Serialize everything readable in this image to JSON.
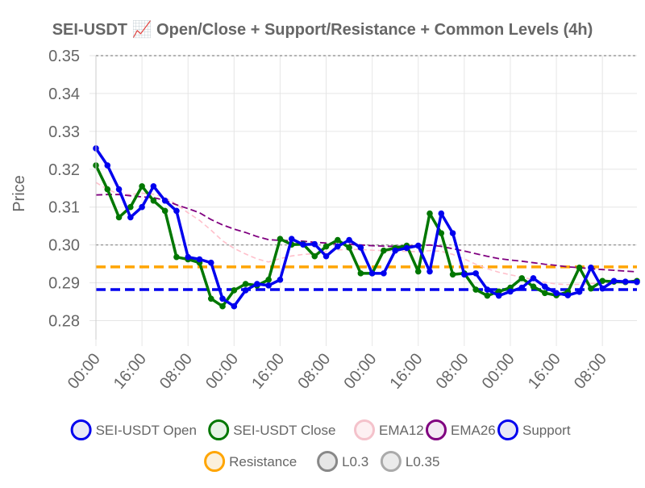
{
  "chart_data": {
    "type": "line",
    "title": "SEI-USDT 📈 Open/Close + Support/Resistance + Common Levels (4h)",
    "ylabel": "Price",
    "xlabel": "",
    "ylim": [
      0.275,
      0.35
    ],
    "y_ticks": [
      "0.28",
      "0.29",
      "0.30",
      "0.31",
      "0.32",
      "0.33",
      "0.34",
      "0.35"
    ],
    "x_tick_labels": [
      "00:00",
      "16:00",
      "08:00",
      "00:00",
      "16:00",
      "08:00",
      "00:00",
      "16:00",
      "08:00",
      "00:00",
      "16:00",
      "08:00"
    ],
    "grid": true,
    "legend_position": "bottom",
    "series": [
      {
        "name": "SEI-USDT Open",
        "color": "#0000ee",
        "style": "line-markers",
        "values": [
          0.3255,
          0.321,
          0.3147,
          0.3073,
          0.31,
          0.3155,
          0.3117,
          0.309,
          0.2968,
          0.2962,
          0.2953,
          0.2858,
          0.2838,
          0.288,
          0.2897,
          0.2893,
          0.2908,
          0.3016,
          0.3001,
          0.3002,
          0.297,
          0.2996,
          0.3013,
          0.2993,
          0.2925,
          0.2925,
          0.2985,
          0.2992,
          0.2998,
          0.293,
          0.3083,
          0.3031,
          0.2922,
          0.2925,
          0.2882,
          0.2866,
          0.2877,
          0.2887,
          0.2912,
          0.289,
          0.2873,
          0.2867,
          0.2876,
          0.294,
          0.2885,
          0.2905,
          0.2903,
          0.2902
        ]
      },
      {
        "name": "SEI-USDT Close",
        "color": "#007700",
        "style": "line-markers",
        "values": [
          0.321,
          0.3147,
          0.3073,
          0.31,
          0.3155,
          0.3117,
          0.309,
          0.2968,
          0.2962,
          0.2953,
          0.2858,
          0.2838,
          0.288,
          0.2897,
          0.2893,
          0.2908,
          0.3016,
          0.3001,
          0.3002,
          0.297,
          0.2996,
          0.3013,
          0.2993,
          0.2925,
          0.2925,
          0.2985,
          0.2992,
          0.2998,
          0.293,
          0.3083,
          0.3031,
          0.2922,
          0.2925,
          0.2882,
          0.2866,
          0.2877,
          0.2887,
          0.2912,
          0.289,
          0.2873,
          0.2867,
          0.2876,
          0.294,
          0.2885,
          0.2905,
          0.2903,
          0.2902,
          0.2905
        ]
      },
      {
        "name": "EMA12",
        "color": "#ffc0cb",
        "style": "dashed",
        "values": [
          0.3165,
          0.3147,
          0.3134,
          0.3133,
          0.3137,
          0.3134,
          0.3125,
          0.3107,
          0.3085,
          0.3065,
          0.3039,
          0.3011,
          0.2991,
          0.2976,
          0.2963,
          0.2955,
          0.2964,
          0.2971,
          0.2975,
          0.2977,
          0.2982,
          0.2987,
          0.2988,
          0.2988,
          0.2986,
          0.2985,
          0.2984,
          0.2983,
          0.2982,
          0.2985,
          0.2983,
          0.2975,
          0.2963,
          0.2949,
          0.2937,
          0.2928,
          0.2921,
          0.2915,
          0.2908,
          0.2901,
          0.2897,
          0.2895,
          0.2896,
          0.2898,
          0.2899,
          0.29,
          0.2901,
          0.2901
        ]
      },
      {
        "name": "EMA26",
        "color": "#800080",
        "style": "dashed",
        "values": [
          0.3132,
          0.3133,
          0.3133,
          0.313,
          0.3127,
          0.3125,
          0.3118,
          0.3106,
          0.3096,
          0.3085,
          0.3067,
          0.3053,
          0.3042,
          0.3033,
          0.3022,
          0.3014,
          0.3012,
          0.3011,
          0.301,
          0.3007,
          0.3005,
          0.3003,
          0.3002,
          0.3,
          0.2998,
          0.2997,
          0.2996,
          0.2997,
          0.2998,
          0.3,
          0.2996,
          0.299,
          0.2984,
          0.2977,
          0.297,
          0.2964,
          0.296,
          0.2957,
          0.2953,
          0.2949,
          0.2946,
          0.2942,
          0.294,
          0.2937,
          0.2935,
          0.2933,
          0.2931,
          0.2929
        ]
      },
      {
        "name": "Support",
        "color": "#0000ee",
        "style": "dashed-flat",
        "value": 0.2882
      },
      {
        "name": "Resistance",
        "color": "#ffa500",
        "style": "dashed-flat",
        "value": 0.2942
      },
      {
        "name": "L0.3",
        "color": "#888888",
        "style": "dotted-flat",
        "value": 0.3
      },
      {
        "name": "L0.35",
        "color": "#888888",
        "style": "dotted-flat",
        "value": 0.35
      }
    ]
  },
  "legend_markers": {
    "SEI-USDT Open": {
      "fill": "#e8e8f6",
      "stroke": "#0000ee"
    },
    "SEI-USDT Close": {
      "fill": "#e6f3e6",
      "stroke": "#007700"
    },
    "EMA12": {
      "fill": "#fdf0f2",
      "stroke": "#f4c2cb"
    },
    "EMA26": {
      "fill": "#f3e8f3",
      "stroke": "#800080"
    },
    "Support": {
      "fill": "#e8e8f6",
      "stroke": "#0000ee"
    },
    "Resistance": {
      "fill": "#fbf0dc",
      "stroke": "#ffa500"
    },
    "L0.3": {
      "fill": "#e6e6e6",
      "stroke": "#888888"
    },
    "L0.35": {
      "fill": "#ebebeb",
      "stroke": "#aaaaaa"
    }
  }
}
